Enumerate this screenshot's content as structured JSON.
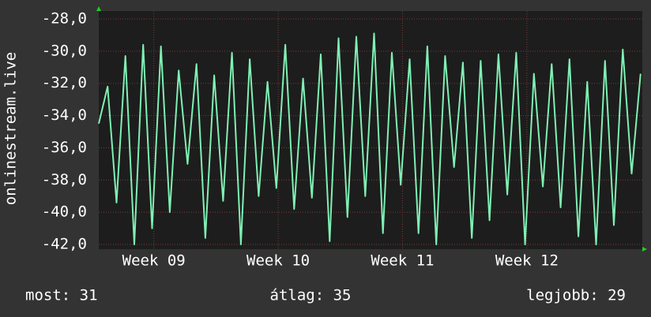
{
  "chart_data": {
    "type": "line",
    "y_label": "onlinestream.live",
    "x": [
      0,
      0.5,
      1,
      1.5,
      2,
      2.5,
      3,
      3.5,
      4,
      4.5,
      5,
      5.5,
      6,
      6.5,
      7,
      7.5,
      8,
      8.5,
      9,
      9.5,
      10,
      10.5,
      11,
      11.5,
      12,
      12.5,
      13,
      13.5,
      14,
      14.5,
      15,
      15.5,
      16,
      16.5,
      17,
      17.5,
      18,
      18.5,
      19,
      19.5,
      20,
      20.5,
      21,
      21.5,
      22,
      22.5,
      23,
      23.5,
      24,
      24.5,
      25,
      25.5,
      26,
      26.5,
      27,
      27.5,
      28,
      28.5,
      29,
      29.5,
      30,
      30.5
    ],
    "series": [
      {
        "color": "#7ff0b4",
        "values": [
          -34.5,
          -32.2,
          -39.4,
          -30.3,
          -42,
          -29.6,
          -41,
          -29.7,
          -40,
          -31.2,
          -37,
          -30.8,
          -41.6,
          -31.5,
          -39.3,
          -30.1,
          -42,
          -30.5,
          -39,
          -31.9,
          -38.5,
          -29.6,
          -39.8,
          -31.7,
          -39.1,
          -30.2,
          -41.8,
          -29.2,
          -40.3,
          -29.1,
          -39,
          -28.9,
          -41.3,
          -30.1,
          -38.3,
          -30.5,
          -41.3,
          -29.7,
          -42,
          -30.3,
          -37.2,
          -30.7,
          -41.6,
          -30.6,
          -40.5,
          -30.2,
          -38.9,
          -30.1,
          -42,
          -31.4,
          -38.4,
          -30.8,
          -39.7,
          -30.5,
          -41.5,
          -31.9,
          -42,
          -30.6,
          -40.8,
          -29.9,
          -37.6,
          -31.4
        ]
      }
    ],
    "xlim": [
      0,
      30.6
    ],
    "xticks": [
      {
        "value": 3.1,
        "label": "Week 09"
      },
      {
        "value": 10.1,
        "label": "Week 10"
      },
      {
        "value": 17.1,
        "label": "Week 11"
      },
      {
        "value": 24.1,
        "label": "Week 12"
      }
    ],
    "ylim": [
      -42,
      -28
    ],
    "yticks": [
      {
        "value": -42,
        "label": "-42,0"
      },
      {
        "value": -40,
        "label": "-40,0"
      },
      {
        "value": -38,
        "label": "-38,0"
      },
      {
        "value": -36,
        "label": "-36,0"
      },
      {
        "value": -34,
        "label": "-34,0"
      },
      {
        "value": -32,
        "label": "-32,0"
      },
      {
        "value": -30,
        "label": "-30,0"
      },
      {
        "value": -28,
        "label": "-28,0"
      }
    ],
    "grid": true,
    "stats": [
      "most: 31",
      "átlag: 35",
      "legjobb: 29"
    ]
  }
}
